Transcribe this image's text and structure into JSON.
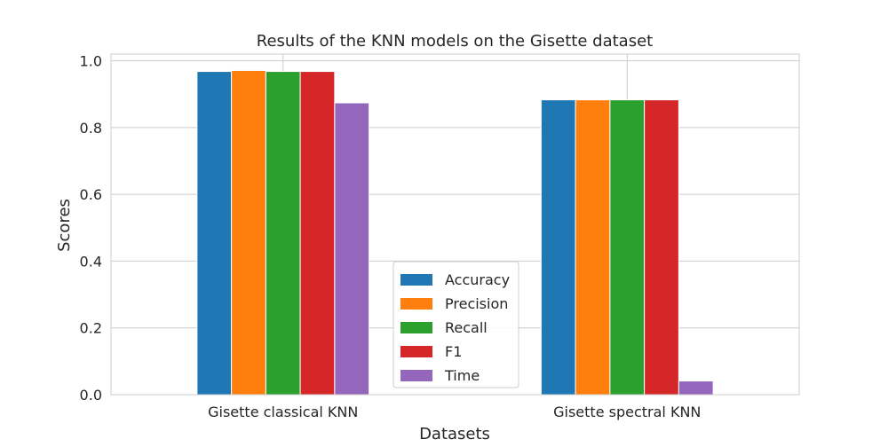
{
  "chart_data": {
    "type": "bar",
    "title": "Results of the KNN models on the Gisette dataset",
    "xlabel": "Datasets",
    "ylabel": "Scores",
    "categories": [
      "Gisette classical KNN",
      "Gisette spectral KNN"
    ],
    "series": [
      {
        "name": "Accuracy",
        "color": "#1f77b4",
        "values": [
          0.968,
          0.883
        ]
      },
      {
        "name": "Precision",
        "color": "#ff7f0e",
        "values": [
          0.971,
          0.883
        ]
      },
      {
        "name": "Recall",
        "color": "#2ca02c",
        "values": [
          0.968,
          0.883
        ]
      },
      {
        "name": "F1",
        "color": "#d62728",
        "values": [
          0.968,
          0.883
        ]
      },
      {
        "name": "Time",
        "color": "#9467bd",
        "values": [
          0.874,
          0.041
        ]
      }
    ],
    "ylim": [
      0.0,
      1.02
    ],
    "yticks": [
      "0.0",
      "0.2",
      "0.4",
      "0.6",
      "0.8",
      "1.0"
    ],
    "grid": true,
    "legend_position": "lower-center"
  }
}
